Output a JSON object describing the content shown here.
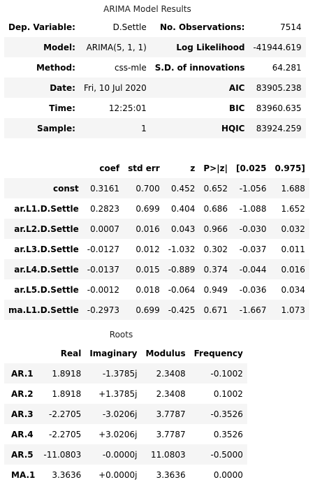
{
  "summary": {
    "caption": "ARIMA Model Results",
    "rows": [
      {
        "l1": "Dep. Variable:",
        "v1": "D.Settle",
        "l2": "No. Observations:",
        "v2": "7514"
      },
      {
        "l1": "Model:",
        "v1": "ARIMA(5, 1, 1)",
        "l2": "Log Likelihood",
        "v2": "-41944.619"
      },
      {
        "l1": "Method:",
        "v1": "css-mle",
        "l2": "S.D. of innovations",
        "v2": "64.281"
      },
      {
        "l1": "Date:",
        "v1": "Fri, 10 Jul 2020",
        "l2": "AIC",
        "v2": "83905.238"
      },
      {
        "l1": "Time:",
        "v1": "12:25:01",
        "l2": "BIC",
        "v2": "83960.635"
      },
      {
        "l1": "Sample:",
        "v1": "1",
        "l2": "HQIC",
        "v2": "83924.259"
      }
    ]
  },
  "coef": {
    "headers": [
      "",
      "coef",
      "std err",
      "z",
      "P>|z|",
      "[0.025",
      "0.975]"
    ],
    "rows": [
      [
        "const",
        "0.3161",
        "0.700",
        "0.452",
        "0.652",
        "-1.056",
        "1.688"
      ],
      [
        "ar.L1.D.Settle",
        "0.2823",
        "0.699",
        "0.404",
        "0.686",
        "-1.088",
        "1.652"
      ],
      [
        "ar.L2.D.Settle",
        "0.0007",
        "0.016",
        "0.043",
        "0.966",
        "-0.030",
        "0.032"
      ],
      [
        "ar.L3.D.Settle",
        "-0.0127",
        "0.012",
        "-1.032",
        "0.302",
        "-0.037",
        "0.011"
      ],
      [
        "ar.L4.D.Settle",
        "-0.0137",
        "0.015",
        "-0.889",
        "0.374",
        "-0.044",
        "0.016"
      ],
      [
        "ar.L5.D.Settle",
        "-0.0012",
        "0.018",
        "-0.064",
        "0.949",
        "-0.036",
        "0.034"
      ],
      [
        "ma.L1.D.Settle",
        "-0.2973",
        "0.699",
        "-0.425",
        "0.671",
        "-1.667",
        "1.073"
      ]
    ]
  },
  "roots": {
    "caption": "Roots",
    "headers": [
      "",
      "Real",
      "Imaginary",
      "Modulus",
      "Frequency"
    ],
    "rows": [
      [
        "AR.1",
        "1.8918",
        "-1.3785j",
        "2.3408",
        "-0.1002"
      ],
      [
        "AR.2",
        "1.8918",
        "+1.3785j",
        "2.3408",
        "0.1002"
      ],
      [
        "AR.3",
        "-2.2705",
        "-3.0206j",
        "3.7787",
        "-0.3526"
      ],
      [
        "AR.4",
        "-2.2705",
        "+3.0206j",
        "3.7787",
        "0.3526"
      ],
      [
        "AR.5",
        "-11.0803",
        "-0.0000j",
        "11.0803",
        "-0.5000"
      ],
      [
        "MA.1",
        "3.3636",
        "+0.0000j",
        "3.3636",
        "0.0000"
      ]
    ]
  }
}
